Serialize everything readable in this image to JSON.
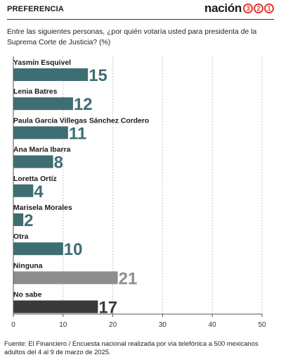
{
  "header": {
    "section": "PREFERENCIA",
    "brand_word": "nación",
    "brand_digits": [
      "3",
      "2",
      "1"
    ]
  },
  "question": "Entre las siguientes personas, ¿por quién votaría usted para presidenta de la Suprema Corte de Justicia? (%)",
  "chart_data": {
    "type": "bar",
    "orientation": "horizontal",
    "categories": [
      "Yasmín Esquivel",
      "Lenia Batres",
      "Paula García Villegas Sánchez Cordero",
      "Ana María Ibarra",
      "Loretta Ortíz",
      "Marisela Morales",
      "Otra",
      "Ninguna",
      "No sabe"
    ],
    "values": [
      15,
      12,
      11,
      8,
      4,
      2,
      10,
      21,
      17
    ],
    "colors": [
      "#3f6e72",
      "#3f6e72",
      "#3f6e72",
      "#3f6e72",
      "#3f6e72",
      "#3f6e72",
      "#3f6e72",
      "#8d8d8d",
      "#3a3a3a"
    ],
    "xlim": [
      0,
      50
    ],
    "xticks": [
      0,
      10,
      20,
      30,
      40,
      50
    ],
    "grid": true
  },
  "source": "Fuente: El Financiero / Encuesta nacional realizada por vía telefónica a 500 mexicanos adultos del 4 al 9 de marzo de 2025."
}
